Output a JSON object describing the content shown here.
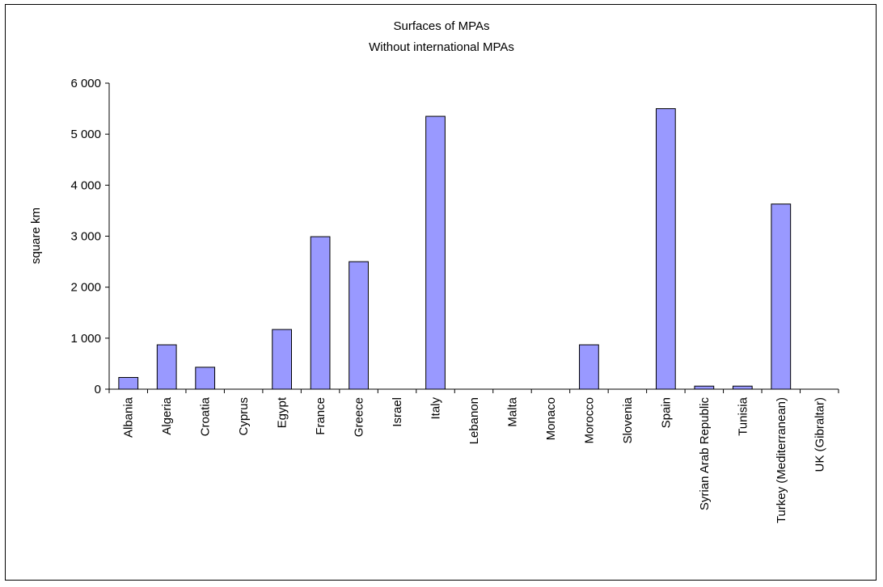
{
  "chart_data": {
    "type": "bar",
    "title": "Surfaces of MPAs",
    "subtitle": "Without international MPAs",
    "xlabel": "",
    "ylabel": "square km",
    "ylim": [
      0,
      6000
    ],
    "yticks": [
      0,
      1000,
      2000,
      3000,
      4000,
      5000,
      6000
    ],
    "ytick_labels": [
      "0",
      "1 000",
      "2 000",
      "3 000",
      "4 000",
      "5 000",
      "6 000"
    ],
    "grid": false,
    "legend": "none",
    "bar_color": "#9999ff",
    "categories": [
      "Albania",
      "Algeria",
      "Croatia",
      "Cyprus",
      "Egypt",
      "France",
      "Greece",
      "Israel",
      "Italy",
      "Lebanon",
      "Malta",
      "Monaco",
      "Morocco",
      "Slovenia",
      "Spain",
      "Syrian Arab Republic",
      "Tunisia",
      "Turkey (Mediterranean)",
      "UK (Gibraltar)"
    ],
    "values": [
      230,
      870,
      430,
      0,
      1170,
      2990,
      2500,
      0,
      5350,
      0,
      0,
      0,
      870,
      0,
      5500,
      60,
      60,
      3630,
      0
    ]
  }
}
